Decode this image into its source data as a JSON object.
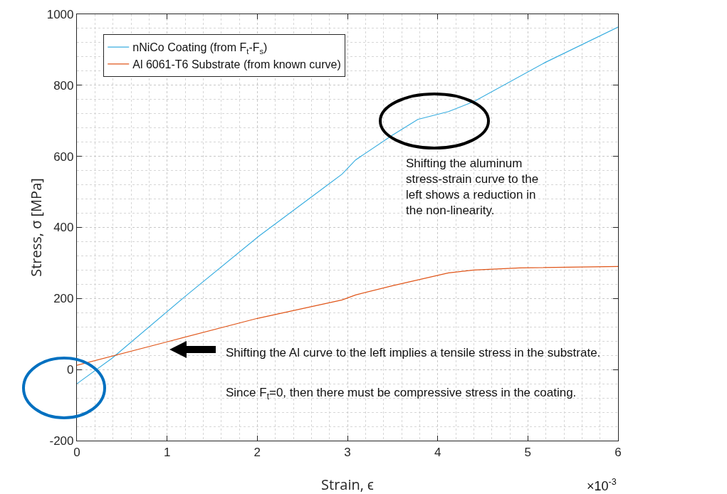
{
  "chart_data": {
    "type": "line",
    "xlabel": "Strain, ϵ",
    "ylabel": "Stress, σ [MPa]",
    "series": [
      {
        "name": "nNiCo Coating (from F$_{t}$-F$_{s}$)",
        "color": "#3aaee0",
        "x": [
          0,
          0.39,
          1.21,
          2.02,
          2.94,
          3.09,
          3.5,
          3.78,
          4.12,
          4.4,
          5.19,
          6
        ],
        "values": [
          -40,
          32,
          208,
          376,
          550,
          590,
          660,
          704,
          726,
          754,
          864,
          964
        ]
      },
      {
        "name": "Al 6061-T6 Substrate (from known curve)",
        "color": "#e0561a",
        "x": [
          0,
          1,
          2,
          2.94,
          3.09,
          3.5,
          4.12,
          4.4,
          4.91,
          6
        ],
        "values": [
          12,
          78,
          144,
          196,
          210,
          236,
          272,
          280,
          286,
          290
        ]
      }
    ],
    "xlim": [
      0,
      6
    ],
    "xticks": [
      0,
      1,
      2,
      3,
      4,
      5,
      6
    ],
    "ylim": [
      -200,
      1000
    ],
    "yticks": [
      -200,
      0,
      200,
      400,
      600,
      800,
      1000
    ],
    "grid": true,
    "legend": "top left",
    "marker": "none",
    "line_style": "solid",
    "annotations": [
      "Shifting the aluminum stress-strain curve to the left shows a reduction in the non-linearity.",
      "Shifting the Al curve to the left implies a tensile stress in the substrate.",
      "Since F$_{t}$=0, then there must be compressive stress in the coating.",
      "×10$^{-3}$"
    ]
  }
}
